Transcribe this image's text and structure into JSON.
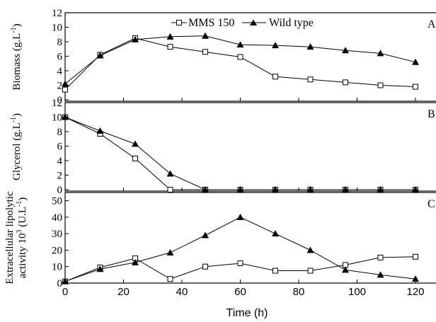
{
  "chart_data": [
    {
      "type": "line",
      "panel_label": "A",
      "ylabel": "Biomass (g.L-1)",
      "ylabel_main": "Biomass (g.L",
      "ylabel_sup": "-1",
      "ylabel_close": ")",
      "ylim": [
        0,
        12
      ],
      "yticks": [
        "0",
        "2",
        "4",
        "6",
        "8",
        "10",
        "12"
      ],
      "x": [
        0,
        12,
        24,
        36,
        48,
        60,
        72,
        84,
        96,
        108,
        120
      ],
      "series": [
        {
          "name": "MMS 150",
          "marker": "open-square",
          "values": [
            1.4,
            6.2,
            8.5,
            7.3,
            6.6,
            5.9,
            3.2,
            2.8,
            2.4,
            2.0,
            1.8
          ]
        },
        {
          "name": "Wild type",
          "marker": "filled-triangle",
          "values": [
            2.2,
            6.1,
            8.3,
            8.7,
            8.8,
            7.6,
            7.5,
            7.3,
            6.8,
            6.4,
            5.2
          ]
        }
      ]
    },
    {
      "type": "line",
      "panel_label": "B",
      "ylabel": "Glycerol (g.L-1)",
      "ylabel_main": "Glycerol (g.L",
      "ylabel_sup": "-1",
      "ylabel_close": ")",
      "ylim": [
        0,
        12
      ],
      "yticks": [
        "0",
        "2",
        "4",
        "6",
        "8",
        "10",
        "12"
      ],
      "x": [
        0,
        12,
        24,
        36,
        48,
        60,
        72,
        84,
        96,
        108,
        120
      ],
      "series": [
        {
          "name": "MMS 150",
          "marker": "open-square",
          "values": [
            10.0,
            7.7,
            4.3,
            0.0,
            0.0,
            0.0,
            0.0,
            0.0,
            0.0,
            0.0,
            0.0
          ]
        },
        {
          "name": "Wild type",
          "marker": "filled-triangle",
          "values": [
            10.0,
            8.1,
            6.3,
            2.2,
            0.0,
            0.0,
            0.0,
            0.0,
            0.0,
            0.0,
            0.0
          ]
        }
      ]
    },
    {
      "type": "line",
      "panel_label": "C",
      "ylabel": "Extracellular lipolytic activity 10-3 (U.L-1)",
      "ylabel_line1": "Extracellular lipolytic",
      "ylabel_line2_main": "activity 10",
      "ylabel_line2_sup": "3",
      "ylabel_line2_mid": " (U.L",
      "ylabel_line2_sup2": "-1",
      "ylabel_line2_close": ")",
      "ylim": [
        0,
        55
      ],
      "yticks": [
        "0",
        "10",
        "20",
        "30",
        "40",
        "50"
      ],
      "x": [
        0,
        12,
        24,
        36,
        48,
        60,
        72,
        84,
        96,
        108,
        120
      ],
      "series": [
        {
          "name": "MMS 150",
          "marker": "open-square",
          "values": [
            1.0,
            9.5,
            15.0,
            2.5,
            10.0,
            12.0,
            7.5,
            7.5,
            11.0,
            15.5,
            16.0
          ]
        },
        {
          "name": "Wild type",
          "marker": "filled-triangle",
          "values": [
            1.0,
            8.5,
            12.5,
            18.5,
            29.0,
            40.0,
            30.0,
            20.0,
            8.0,
            5.0,
            2.5
          ]
        }
      ],
      "xlabel": "Time (h)",
      "xlim": [
        0,
        120
      ],
      "xticks": [
        "0",
        "20",
        "40",
        "60",
        "80",
        "100",
        "120"
      ]
    }
  ],
  "legend": {
    "placement": "top-center",
    "items": [
      {
        "label": "MMS 150",
        "marker": "open-square"
      },
      {
        "label": "Wild type",
        "marker": "filled-triangle"
      }
    ]
  }
}
